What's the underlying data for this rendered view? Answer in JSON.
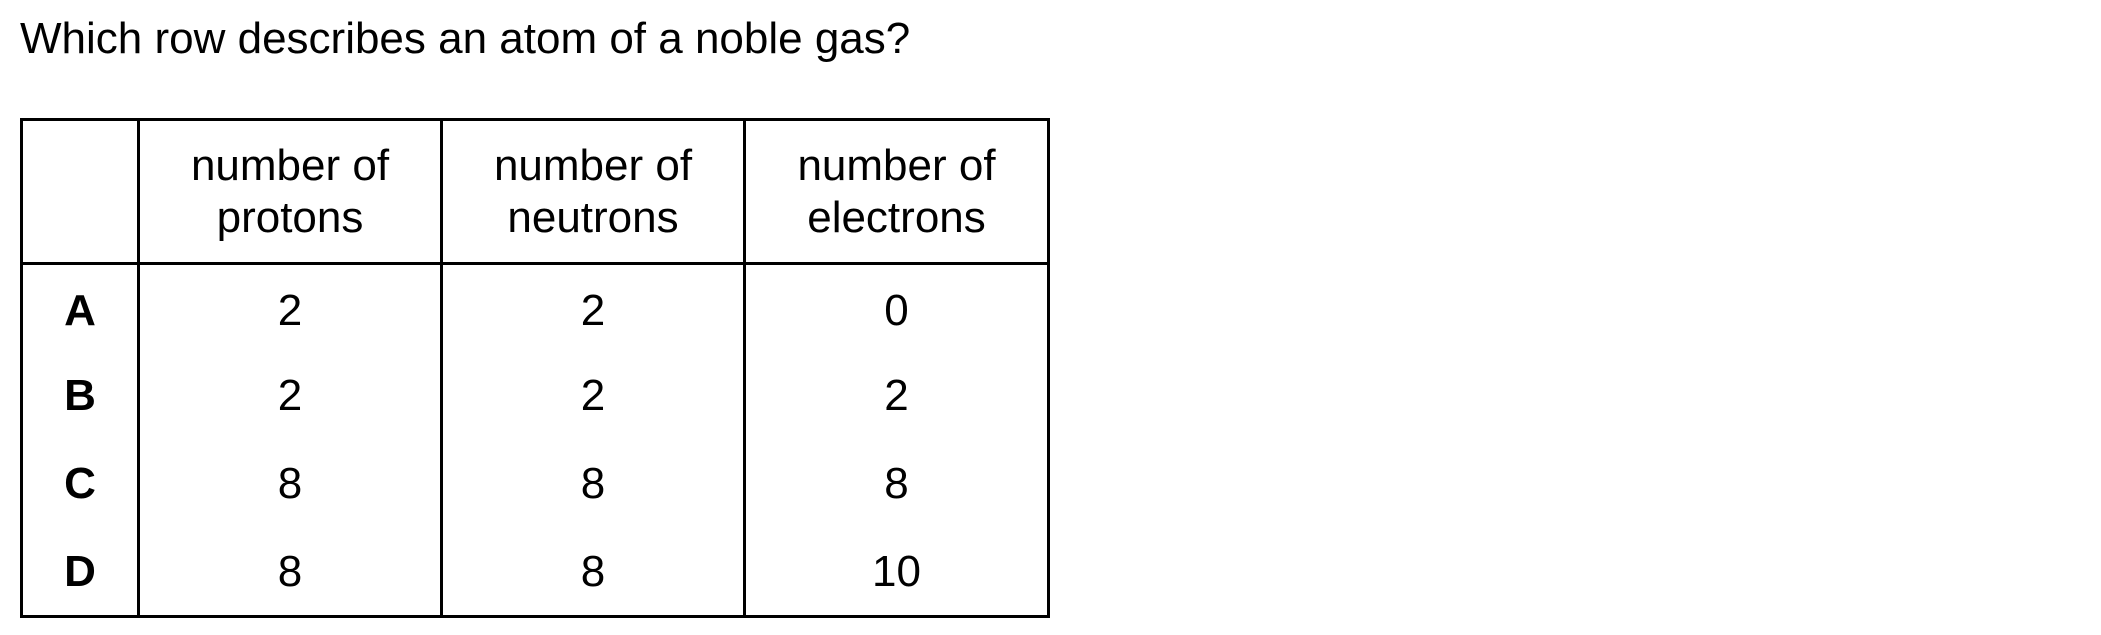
{
  "question": "Which row describes an atom of a noble gas?",
  "table": {
    "headers": [
      "",
      [
        "number of",
        "protons"
      ],
      [
        "number of",
        "neutrons"
      ],
      [
        "number of",
        "electrons"
      ]
    ],
    "rows": [
      {
        "letter": "A",
        "protons": "2",
        "neutrons": "2",
        "electrons": "0"
      },
      {
        "letter": "B",
        "protons": "2",
        "neutrons": "2",
        "electrons": "2"
      },
      {
        "letter": "C",
        "protons": "8",
        "neutrons": "8",
        "electrons": "8"
      },
      {
        "letter": "D",
        "protons": "8",
        "neutrons": "8",
        "electrons": "10"
      }
    ]
  }
}
